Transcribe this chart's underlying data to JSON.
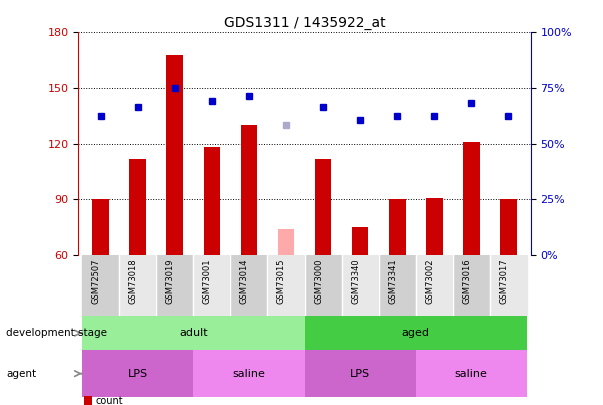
{
  "title": "GDS1311 / 1435922_at",
  "samples": [
    "GSM72507",
    "GSM73018",
    "GSM73019",
    "GSM73001",
    "GSM73014",
    "GSM73015",
    "GSM73000",
    "GSM73340",
    "GSM73341",
    "GSM73002",
    "GSM73016",
    "GSM73017"
  ],
  "bar_values": [
    90,
    112,
    168,
    118,
    130,
    null,
    112,
    75,
    90,
    91,
    121,
    90
  ],
  "bar_absent_values": [
    null,
    null,
    null,
    null,
    null,
    74,
    null,
    null,
    null,
    null,
    null,
    null
  ],
  "bar_color": "#cc0000",
  "bar_absent_color": "#ffaaaa",
  "dot_values": [
    135,
    140,
    150,
    143,
    146,
    null,
    140,
    133,
    135,
    135,
    142,
    135
  ],
  "dot_absent_values": [
    null,
    null,
    null,
    null,
    null,
    130,
    null,
    null,
    null,
    null,
    null,
    null
  ],
  "dot_color": "#0000cc",
  "dot_absent_color": "#aaaacc",
  "ylim_left": [
    60,
    180
  ],
  "ylim_right": [
    0,
    100
  ],
  "yticks_left": [
    60,
    90,
    120,
    150,
    180
  ],
  "yticks_right": [
    0,
    25,
    50,
    75,
    100
  ],
  "ytick_labels_right": [
    "0%",
    "25%",
    "50%",
    "75%",
    "100%"
  ],
  "groups_dev": [
    {
      "label": "adult",
      "start": 0,
      "end": 5,
      "color": "#99ee99"
    },
    {
      "label": "aged",
      "start": 6,
      "end": 11,
      "color": "#44cc44"
    }
  ],
  "groups_agent": [
    {
      "label": "LPS",
      "start": 0,
      "end": 2,
      "color": "#cc66cc"
    },
    {
      "label": "saline",
      "start": 3,
      "end": 5,
      "color": "#ee88ee"
    },
    {
      "label": "LPS",
      "start": 6,
      "end": 8,
      "color": "#cc66cc"
    },
    {
      "label": "saline",
      "start": 9,
      "end": 11,
      "color": "#ee88ee"
    }
  ],
  "bar_width": 0.45,
  "figsize": [
    6.03,
    4.05
  ],
  "dpi": 100
}
